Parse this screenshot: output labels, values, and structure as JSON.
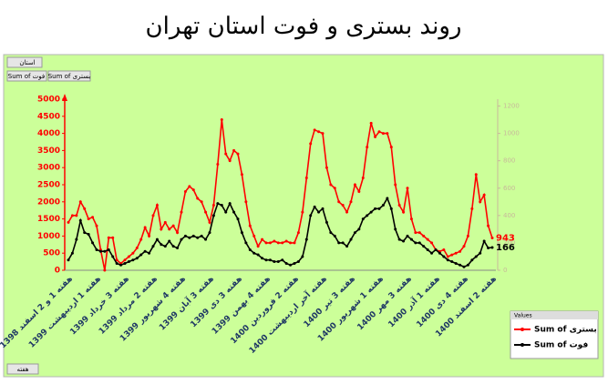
{
  "chart_data": {
    "type": "line",
    "title": "روند بستری و فوت استان تهران",
    "pivot_fields": {
      "filter": "استان",
      "values": [
        "Sum of فوت",
        "Sum of بستری"
      ],
      "axis": "هفته"
    },
    "legend_title": "Values",
    "categories": [
      "هفته 1 و 2 اسفند 1398",
      null,
      null,
      null,
      null,
      null,
      null,
      "هفته 1 اردیبهشت 1399",
      null,
      null,
      null,
      null,
      null,
      null,
      "هفته 3 خرداد 1399",
      null,
      null,
      null,
      null,
      null,
      null,
      "هفته 2 مرداد 1399",
      null,
      null,
      null,
      null,
      null,
      null,
      "هفته 4 شهریور 1399",
      null,
      null,
      null,
      null,
      null,
      null,
      "هفته 3 آبان 1399",
      null,
      null,
      null,
      null,
      null,
      null,
      "هفته 3 دی 1399",
      null,
      null,
      null,
      null,
      null,
      null,
      "هفته 4 بهمن 1399",
      null,
      null,
      null,
      null,
      null,
      null,
      "هفته 2 فروردین 1400",
      null,
      null,
      null,
      null,
      null,
      null,
      "هفته آخر اردیبهشت 1400",
      null,
      null,
      null,
      null,
      null,
      null,
      "هفته 3 تیر 1400",
      null,
      null,
      null,
      null,
      null,
      null,
      "هفته 1 شهریور 1400",
      null,
      null,
      null,
      null,
      null,
      null,
      "هفته 3 مهر 1400",
      null,
      null,
      null,
      null,
      null,
      null,
      "هفته 1 آذر 1400",
      null,
      null,
      null,
      null,
      null,
      null,
      "هفته 4 دی 1400",
      null,
      null,
      null,
      null,
      null,
      null,
      "هفته 2 اسفند 1400"
    ],
    "series": [
      {
        "name": "Sum of بستری",
        "color": "#ff0000",
        "axis": "y",
        "values": [
          1400,
          1600,
          1600,
          2000,
          1800,
          1500,
          1550,
          1300,
          600,
          0,
          950,
          950,
          300,
          200,
          300,
          400,
          500,
          650,
          900,
          1250,
          1000,
          1600,
          1900,
          1200,
          1400,
          1200,
          1300,
          1100,
          1700,
          2300,
          2450,
          2350,
          2100,
          2000,
          1700,
          1400,
          1900,
          3100,
          4400,
          3400,
          3200,
          3500,
          3400,
          2800,
          2000,
          1300,
          1000,
          700,
          900,
          800,
          800,
          850,
          800,
          800,
          850,
          800,
          800,
          1100,
          1700,
          2700,
          3700,
          4100,
          4050,
          4000,
          3000,
          2500,
          2400,
          2000,
          1900,
          1700,
          2000,
          2500,
          2300,
          2700,
          3600,
          4300,
          3900,
          4050,
          4000,
          4000,
          3600,
          2500,
          1900,
          1700,
          2400,
          1500,
          1100,
          1100,
          1000,
          900,
          800,
          600,
          550,
          600,
          400,
          450,
          500,
          550,
          700,
          1000,
          1800,
          2800,
          2000,
          2200,
          1300,
          943
        ]
      },
      {
        "name": "Sum of فوت",
        "color": "#000000",
        "axis": "y2",
        "values": [
          75,
          125,
          225,
          363,
          275,
          263,
          200,
          150,
          138,
          138,
          150,
          100,
          50,
          38,
          50,
          63,
          75,
          88,
          113,
          138,
          125,
          175,
          225,
          188,
          175,
          213,
          175,
          163,
          225,
          250,
          238,
          250,
          238,
          250,
          225,
          275,
          400,
          488,
          475,
          425,
          488,
          425,
          375,
          275,
          200,
          150,
          125,
          113,
          88,
          75,
          75,
          63,
          63,
          75,
          50,
          38,
          50,
          63,
          100,
          225,
          400,
          463,
          425,
          450,
          350,
          275,
          250,
          200,
          200,
          175,
          225,
          275,
          300,
          375,
          400,
          425,
          450,
          450,
          475,
          525,
          450,
          300,
          225,
          213,
          250,
          225,
          200,
          200,
          175,
          150,
          125,
          150,
          125,
          100,
          75,
          63,
          50,
          38,
          25,
          38,
          75,
          100,
          125,
          213,
          163,
          166
        ]
      }
    ],
    "ylim": [
      0,
      5000
    ],
    "yticks": [
      0,
      500,
      1000,
      1500,
      2000,
      2500,
      3000,
      3500,
      4000,
      4500,
      5000
    ],
    "y2lim": [
      0,
      1250
    ],
    "y2ticks": [
      0,
      200,
      400,
      600,
      800,
      1000,
      1200
    ]
  }
}
